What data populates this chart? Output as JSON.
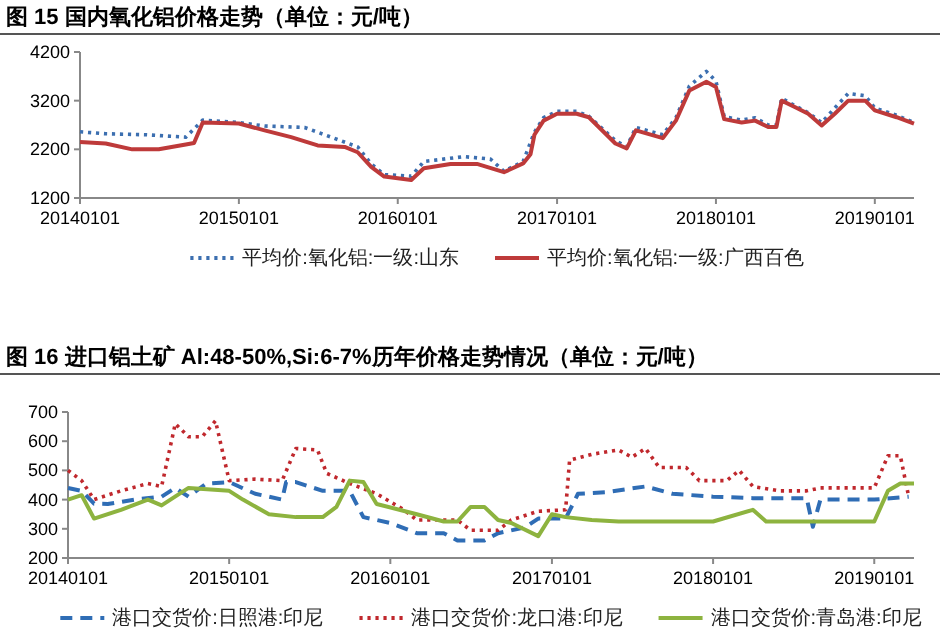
{
  "chart_data": [
    {
      "type": "line",
      "title": "图 15 国内氧化铝价格走势（单位：元/吨）",
      "xlim": [
        "2014-01-01",
        "2019-04-01"
      ],
      "ylim": [
        1200,
        4200
      ],
      "yticks": [
        1200,
        2200,
        3200,
        4200
      ],
      "xticks": [
        {
          "value": "2014-01-01",
          "label": "20140101"
        },
        {
          "value": "2015-01-01",
          "label": "20150101"
        },
        {
          "value": "2016-01-01",
          "label": "20160101"
        },
        {
          "value": "2017-01-01",
          "label": "20170101"
        },
        {
          "value": "2018-01-01",
          "label": "20180101"
        },
        {
          "value": "2019-01-01",
          "label": "20190101"
        }
      ],
      "legend": "bottom",
      "series": [
        {
          "name": "平均价:氧化铝:一级:山东",
          "color": "#3c6fb0",
          "line_style": "dotted",
          "x": [
            "2014-01-01",
            "2014-03-01",
            "2014-06-01",
            "2014-09-01",
            "2014-10-10",
            "2015-01-01",
            "2015-03-01",
            "2015-06-01",
            "2015-08-01",
            "2015-10-01",
            "2015-11-01",
            "2015-12-01",
            "2016-02-01",
            "2016-03-01",
            "2016-06-01",
            "2016-08-01",
            "2016-09-01",
            "2016-10-15",
            "2016-11-10",
            "2016-12-01",
            "2017-01-01",
            "2017-02-15",
            "2017-03-15",
            "2017-05-15",
            "2017-06-10",
            "2017-07-01",
            "2017-09-01",
            "2017-10-01",
            "2017-11-01",
            "2017-12-10",
            "2018-01-01",
            "2018-01-20",
            "2018-03-01",
            "2018-04-01",
            "2018-05-01",
            "2018-05-20",
            "2018-06-01",
            "2018-07-01",
            "2018-08-01",
            "2018-09-01",
            "2018-10-01",
            "2018-11-01",
            "2018-12-10",
            "2019-01-01",
            "2019-02-20",
            "2019-04-01"
          ],
          "values": [
            2560,
            2520,
            2500,
            2450,
            2800,
            2750,
            2680,
            2650,
            2450,
            2250,
            1900,
            1680,
            1650,
            1950,
            2050,
            2000,
            1750,
            1950,
            2550,
            2850,
            2980,
            2980,
            2880,
            2380,
            2250,
            2650,
            2500,
            2850,
            3500,
            3800,
            3600,
            2870,
            2800,
            2850,
            2700,
            2700,
            3250,
            3100,
            2950,
            2750,
            3050,
            3350,
            3300,
            3050,
            2900,
            2750
          ]
        },
        {
          "name": "平均价:氧化铝:一级:广西百色",
          "color": "#be3a3a",
          "line_style": "solid",
          "x": [
            "2014-01-01",
            "2014-03-01",
            "2014-05-01",
            "2014-07-01",
            "2014-09-01",
            "2014-09-20",
            "2014-10-10",
            "2015-01-01",
            "2015-03-01",
            "2015-05-01",
            "2015-07-01",
            "2015-09-01",
            "2015-10-01",
            "2015-11-01",
            "2015-12-01",
            "2016-02-01",
            "2016-03-01",
            "2016-05-01",
            "2016-07-01",
            "2016-09-01",
            "2016-10-15",
            "2016-11-01",
            "2016-11-10",
            "2016-12-01",
            "2017-01-01",
            "2017-02-15",
            "2017-03-15",
            "2017-05-15",
            "2017-06-10",
            "2017-07-01",
            "2017-09-01",
            "2017-10-01",
            "2017-11-01",
            "2017-12-10",
            "2018-01-01",
            "2018-01-20",
            "2018-03-01",
            "2018-04-01",
            "2018-05-01",
            "2018-05-20",
            "2018-06-01",
            "2018-07-01",
            "2018-08-01",
            "2018-09-01",
            "2018-10-01",
            "2018-11-01",
            "2018-12-10",
            "2019-01-01",
            "2019-02-20",
            "2019-04-01"
          ],
          "values": [
            2350,
            2320,
            2200,
            2200,
            2300,
            2330,
            2750,
            2730,
            2590,
            2450,
            2280,
            2250,
            2140,
            1840,
            1640,
            1570,
            1810,
            1900,
            1900,
            1730,
            1910,
            2100,
            2500,
            2790,
            2930,
            2930,
            2860,
            2320,
            2220,
            2590,
            2430,
            2790,
            3410,
            3590,
            3480,
            2820,
            2750,
            2790,
            2660,
            2660,
            3200,
            3070,
            2930,
            2690,
            2930,
            3200,
            3200,
            3000,
            2860,
            2730
          ]
        }
      ]
    },
    {
      "type": "line",
      "title": "图 16 进口铝土矿 Al:48-50%,Si:6-7%历年价格走势情况（单位：元/吨）",
      "xlim": [
        "2014-01-01",
        "2019-04-01"
      ],
      "ylim": [
        200,
        700
      ],
      "yticks": [
        200,
        300,
        400,
        500,
        600,
        700
      ],
      "xticks": [
        {
          "value": "2014-01-01",
          "label": "20140101"
        },
        {
          "value": "2015-01-01",
          "label": "20150101"
        },
        {
          "value": "2016-01-01",
          "label": "20160101"
        },
        {
          "value": "2017-01-01",
          "label": "20170101"
        },
        {
          "value": "2018-01-01",
          "label": "20180101"
        },
        {
          "value": "2019-01-01",
          "label": "20190101"
        }
      ],
      "legend": "bottom",
      "series": [
        {
          "name": "港口交货价:日照港:印尼",
          "color": "#2f6db5",
          "line_style": "dashed",
          "x": [
            "2014-01-01",
            "2014-02-01",
            "2014-03-01",
            "2014-04-01",
            "2014-06-01",
            "2014-08-01",
            "2014-09-01",
            "2014-10-01",
            "2014-11-10",
            "2015-01-01",
            "2015-03-01",
            "2015-05-01",
            "2015-05-10",
            "2015-06-01",
            "2015-08-01",
            "2015-10-01",
            "2015-11-01",
            "2016-01-01",
            "2016-03-01",
            "2016-05-01",
            "2016-06-01",
            "2016-08-01",
            "2016-09-01",
            "2016-11-01",
            "2016-12-01",
            "2017-02-01",
            "2017-03-01",
            "2017-05-01",
            "2017-08-01",
            "2017-10-01",
            "2018-01-01",
            "2018-04-01",
            "2018-08-01",
            "2018-08-15",
            "2018-09-01",
            "2019-01-01",
            "2019-03-20"
          ],
          "values": [
            440,
            430,
            386,
            385,
            400,
            410,
            440,
            410,
            455,
            460,
            420,
            400,
            460,
            460,
            430,
            430,
            340,
            320,
            285,
            285,
            260,
            260,
            285,
            305,
            335,
            335,
            420,
            425,
            445,
            420,
            410,
            405,
            405,
            307,
            400,
            400,
            410
          ]
        },
        {
          "name": "港口交货价:龙口港:印尼",
          "color": "#c0282d",
          "line_style": "dotted",
          "x": [
            "2014-01-01",
            "2014-02-01",
            "2014-03-01",
            "2014-05-01",
            "2014-07-01",
            "2014-08-01",
            "2014-09-01",
            "2014-10-01",
            "2014-11-01",
            "2014-12-01",
            "2015-01-01",
            "2015-03-01",
            "2015-05-01",
            "2015-06-01",
            "2015-07-20",
            "2015-08-10",
            "2015-10-01",
            "2015-12-01",
            "2016-02-01",
            "2016-03-01",
            "2016-06-01",
            "2016-07-01",
            "2016-09-01",
            "2016-10-01",
            "2016-12-01",
            "2017-02-01",
            "2017-02-10",
            "2017-04-01",
            "2017-06-01",
            "2017-07-01",
            "2017-08-01",
            "2017-09-01",
            "2017-11-01",
            "2017-12-01",
            "2018-02-01",
            "2018-03-01",
            "2018-04-01",
            "2018-06-01",
            "2018-08-01",
            "2018-09-01",
            "2019-01-01",
            "2019-02-01",
            "2019-03-01",
            "2019-03-20"
          ],
          "values": [
            500,
            465,
            400,
            430,
            455,
            445,
            660,
            615,
            615,
            670,
            465,
            470,
            465,
            575,
            570,
            490,
            455,
            420,
            365,
            330,
            330,
            295,
            295,
            330,
            360,
            365,
            535,
            555,
            570,
            545,
            575,
            510,
            510,
            465,
            465,
            500,
            445,
            430,
            430,
            440,
            440,
            550,
            550,
            410
          ]
        },
        {
          "name": "港口交货价:青岛港:印尼",
          "color": "#8db33f",
          "line_style": "solid",
          "x": [
            "2014-01-01",
            "2014-02-01",
            "2014-03-01",
            "2014-05-01",
            "2014-07-01",
            "2014-08-01",
            "2014-10-01",
            "2015-01-01",
            "2015-02-01",
            "2015-04-01",
            "2015-06-01",
            "2015-08-01",
            "2015-09-01",
            "2015-10-01",
            "2015-11-01",
            "2015-12-01",
            "2016-03-01",
            "2016-05-01",
            "2016-06-01",
            "2016-07-01",
            "2016-08-01",
            "2016-09-01",
            "2016-10-01",
            "2016-12-01",
            "2017-01-01",
            "2017-02-01",
            "2017-04-01",
            "2017-06-01",
            "2018-01-01",
            "2018-04-01",
            "2018-05-01",
            "2019-01-01",
            "2019-02-01",
            "2019-03-01",
            "2019-04-01"
          ],
          "values": [
            400,
            415,
            335,
            365,
            400,
            380,
            440,
            430,
            400,
            350,
            340,
            340,
            375,
            465,
            460,
            385,
            350,
            325,
            325,
            375,
            375,
            330,
            320,
            275,
            350,
            340,
            330,
            325,
            325,
            365,
            325,
            325,
            430,
            455,
            455
          ]
        }
      ]
    }
  ]
}
